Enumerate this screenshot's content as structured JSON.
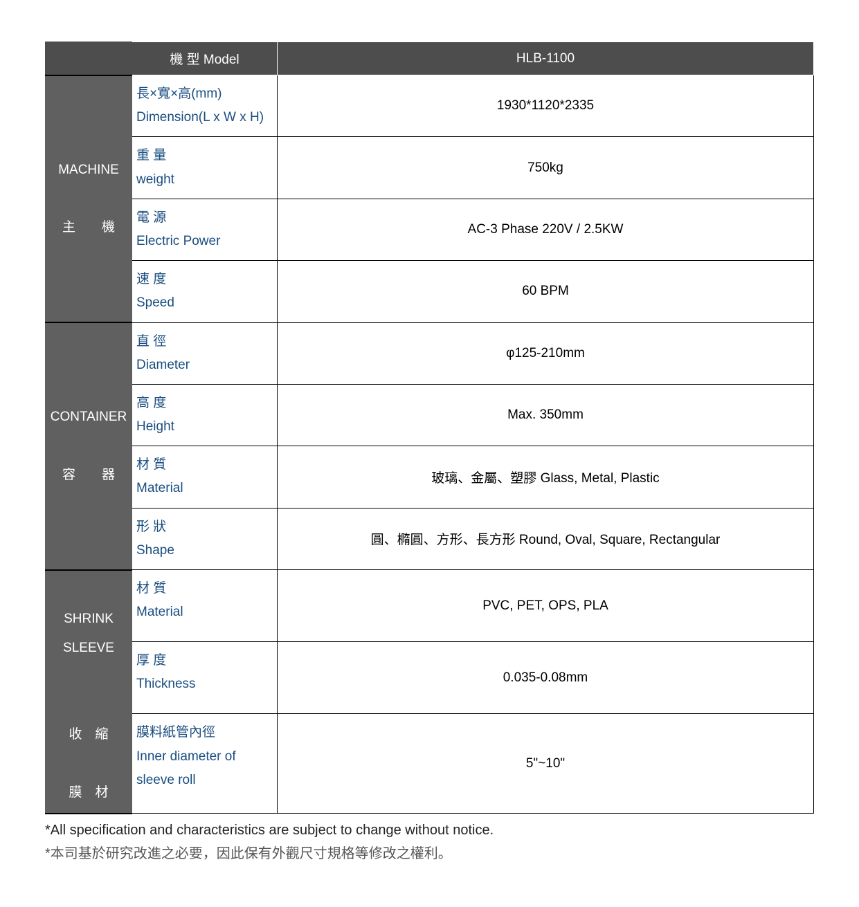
{
  "colors": {
    "header_bg": "#4d4d4d",
    "group_bg": "#606060",
    "label_text": "#1a4d80",
    "value_text": "#000000",
    "border": "#000000",
    "page_bg": "#ffffff"
  },
  "header": {
    "model_label": "機 型 Model",
    "model_value": "HLB-1100"
  },
  "groups": [
    {
      "title_en": "MACHINE",
      "title_zh": "主　　機",
      "rows": [
        {
          "label_zh": "長×寬×高(mm)",
          "label_en": "Dimension(L x W x H)",
          "value": "1930*1120*2335"
        },
        {
          "label_zh": "重 量",
          "label_en": "weight",
          "value": "750kg"
        },
        {
          "label_zh": "電 源",
          "label_en": "Electric Power",
          "value": "AC-3 Phase 220V / 2.5KW"
        },
        {
          "label_zh": "速 度",
          "label_en": "Speed",
          "value": "60 BPM"
        }
      ]
    },
    {
      "title_en": "CONTAINER",
      "title_zh": "容　　器",
      "rows": [
        {
          "label_zh": "直 徑",
          "label_en": "Diameter",
          "value": "φ125-210mm"
        },
        {
          "label_zh": "高 度",
          "label_en": "Height",
          "value": "Max. 350mm"
        },
        {
          "label_zh": "材 質",
          "label_en": "Material",
          "value": "玻璃、金屬、塑膠 Glass, Metal, Plastic"
        },
        {
          "label_zh": "形 狀",
          "label_en": "Shape",
          "value": "圓、橢圓、方形、長方形 Round, Oval, Square, Rectangular"
        }
      ]
    },
    {
      "title_en": "SHRINK\nSLEEVE",
      "title_zh": "收　縮\n\n膜　材",
      "rows": [
        {
          "label_zh": "材 質",
          "label_en": "Material",
          "value": "PVC, PET, OPS, PLA"
        },
        {
          "label_zh": "厚 度",
          "label_en": "Thickness",
          "value": "0.035-0.08mm"
        },
        {
          "label_zh": "膜料紙管內徑",
          "label_en": "Inner diameter of sleeve roll",
          "value": "5\"~10\""
        }
      ]
    }
  ],
  "footnotes": {
    "line1": "*All specification and characteristics are subject to change without notice.",
    "line2": "*本司基於研究改進之必要，因此保有外觀尺寸規格等修改之權利。"
  }
}
